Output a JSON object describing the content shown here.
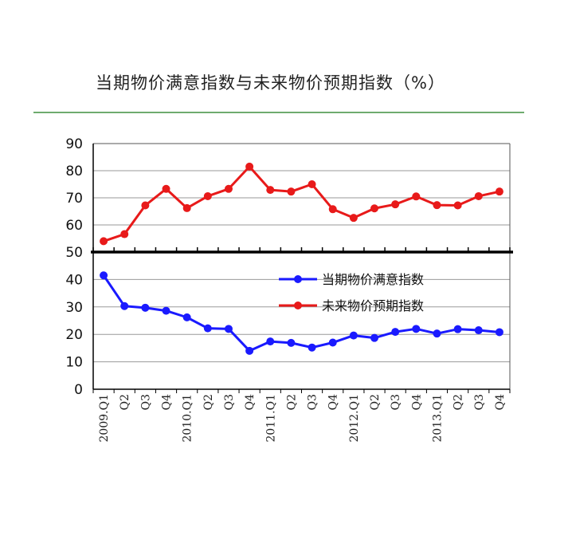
{
  "chart_data": {
    "type": "line",
    "title": "当期物价满意指数与未来物价预期指数（%）",
    "categories": [
      "2009.Q1",
      "Q2",
      "Q3",
      "Q4",
      "2010.Q1",
      "Q2",
      "Q3",
      "Q4",
      "2011.Q1",
      "Q2",
      "Q3",
      "Q4",
      "2012.Q1",
      "Q2",
      "Q3",
      "Q4",
      "2013.Q1",
      "Q2",
      "Q3",
      "Q4"
    ],
    "y_ticks": [
      "90",
      "80",
      "70",
      "60",
      "50",
      "40",
      "30",
      "20",
      "10",
      "0"
    ],
    "y_upper_range": [
      50,
      90
    ],
    "y_lower_range": [
      0,
      50
    ],
    "grid": true,
    "legend_position": "right-center",
    "series": [
      {
        "name": "当期物价满意指数",
        "color": "#1a1aff",
        "values": [
          41.5,
          30.3,
          29.7,
          28.6,
          26.2,
          22.2,
          22.0,
          14.0,
          17.4,
          16.9,
          15.2,
          17.0,
          19.6,
          18.7,
          20.9,
          22.0,
          20.3,
          21.9,
          21.5,
          20.8
        ]
      },
      {
        "name": "未来物价预期指数",
        "color": "#e81a1a",
        "values": [
          54.0,
          56.6,
          67.2,
          73.3,
          66.2,
          70.6,
          73.3,
          81.5,
          72.9,
          72.3,
          75.0,
          65.8,
          62.6,
          66.1,
          67.6,
          70.5,
          67.3,
          67.2,
          70.6,
          72.3
        ]
      }
    ]
  }
}
